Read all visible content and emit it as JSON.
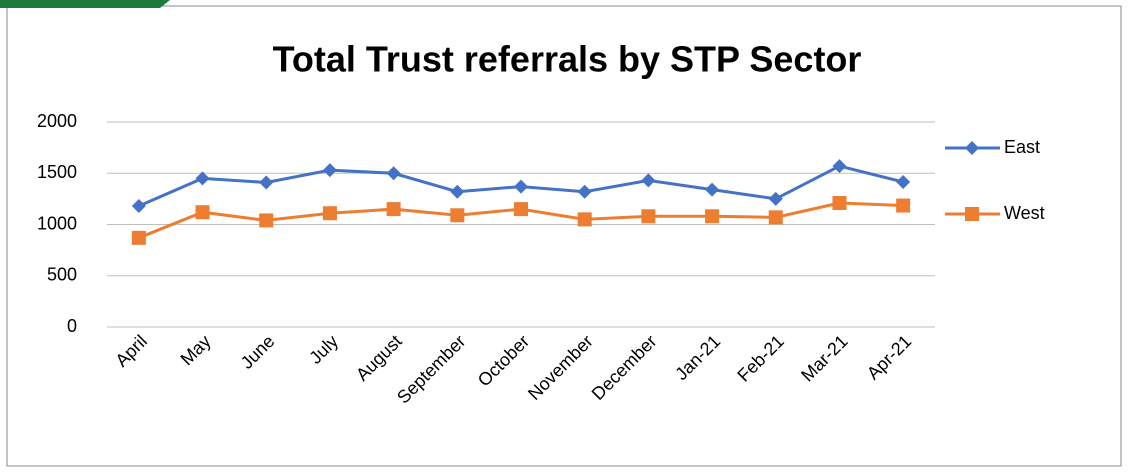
{
  "chart_data": {
    "type": "line",
    "title": "Total Trust referrals by STP Sector",
    "categories": [
      "April",
      "May",
      "June",
      "July",
      "August",
      "September",
      "October",
      "November",
      "December",
      "Jan-21",
      "Feb-21",
      "Mar-21",
      "Apr-21"
    ],
    "series": [
      {
        "name": "East",
        "color": "#4472c4",
        "marker": "diamond",
        "values": [
          1180,
          1450,
          1410,
          1530,
          1500,
          1320,
          1370,
          1320,
          1430,
          1340,
          1250,
          1570,
          1415
        ]
      },
      {
        "name": "West",
        "color": "#ed7d31",
        "marker": "square",
        "values": [
          870,
          1120,
          1040,
          1110,
          1150,
          1090,
          1150,
          1050,
          1080,
          1080,
          1070,
          1210,
          1185
        ]
      }
    ],
    "ylim": [
      0,
      2000
    ],
    "yticks": [
      0,
      500,
      1000,
      1500,
      2000
    ],
    "grid": true,
    "legend": "right"
  }
}
